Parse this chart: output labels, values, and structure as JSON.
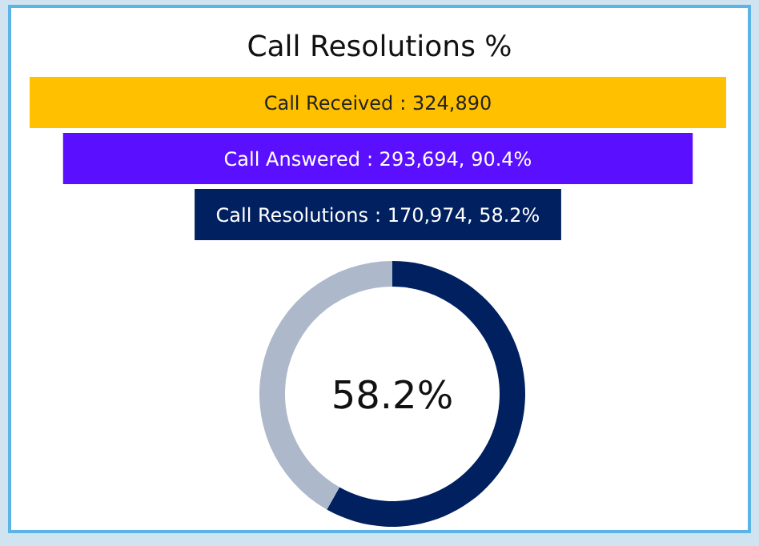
{
  "chart_data": [
    {
      "type": "other",
      "title": "Call Resolutions %",
      "categories": [
        "Call Received",
        "Call Answered",
        "Call Resolutions"
      ],
      "values": [
        324890,
        293694,
        170974
      ],
      "value_labels": [
        ": 324,890",
        ": 293,694, 90.4%",
        ": 170,974, 58.2%"
      ],
      "colors": [
        "#ffc000",
        "#5b0fff",
        "#002060"
      ]
    },
    {
      "type": "donut",
      "categories": [
        null,
        null
      ],
      "values": [
        58.2,
        41.8
      ],
      "colors": [
        "#002060",
        "#adb9ca"
      ],
      "annotations": [
        "58.2%"
      ]
    }
  ]
}
